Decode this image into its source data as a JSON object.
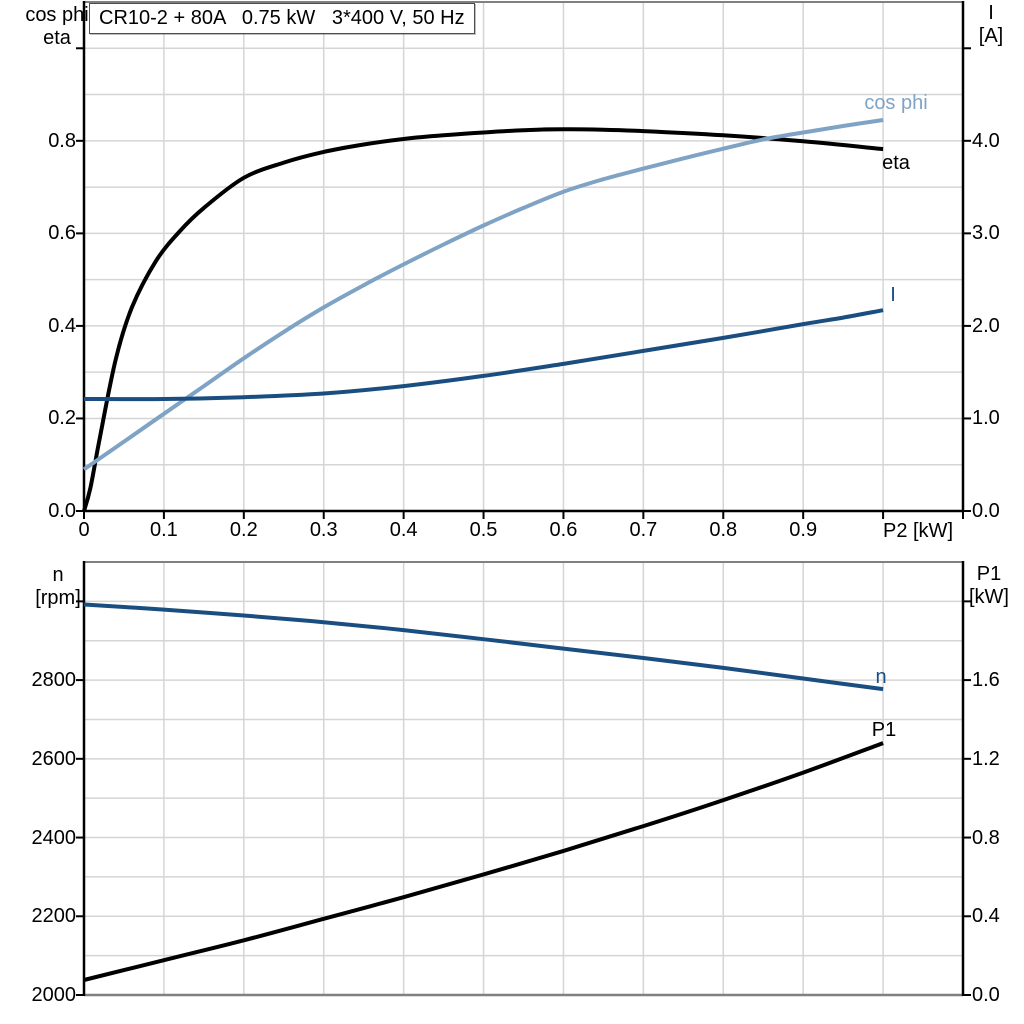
{
  "title_box": {
    "text": "CR10-2 + 80A   0.75 kW   3*400 V, 50 Hz"
  },
  "axis_corner_labels": {
    "top_left": [
      "cos phi",
      "eta"
    ],
    "top_right": [
      "I",
      "[A]"
    ],
    "bottom_left": [
      "n",
      "[rpm]"
    ],
    "bottom_right": [
      "P1",
      "[kW]"
    ]
  },
  "colors": {
    "black": "#000000",
    "light_blue": "#7fa3c4",
    "dark_blue": "#1a4e80",
    "grid": "#d5d5d5",
    "border_gray": "#808080"
  },
  "chart_data": [
    {
      "type": "line",
      "title": "CR10-2 + 80A   0.75 kW   3*400 V, 50 Hz",
      "x_axis": {
        "label": "P2 [kW]",
        "min": 0,
        "max": 1.1,
        "tick_step": 0.1,
        "tick_labels": [
          "0",
          "0.1",
          "0.2",
          "0.3",
          "0.4",
          "0.5",
          "0.6",
          "0.7",
          "0.8",
          "0.9",
          ""
        ]
      },
      "y_axis_left": {
        "label": "cos phi / eta",
        "min": 0,
        "max": 1.1,
        "grid_step": 0.1,
        "ticks": [
          0,
          0.2,
          0.4,
          0.6,
          0.8,
          1.0
        ],
        "tick_labels": [
          "0.0",
          "0.2",
          "0.4",
          "0.6",
          "0.8",
          ""
        ]
      },
      "y_axis_right": {
        "label": "I [A]",
        "min": 0,
        "max": 5.5,
        "grid_step": 0.5,
        "ticks": [
          0,
          1,
          2,
          3,
          4,
          5
        ],
        "tick_labels": [
          "0.0",
          "1.0",
          "2.0",
          "3.0",
          "4.0",
          ""
        ]
      },
      "grid": true,
      "legend_position": "inline-curve-labels",
      "series": [
        {
          "name": "eta",
          "axis": "left",
          "color": "#000000",
          "x": [
            0,
            0.008,
            0.02,
            0.04,
            0.06,
            0.09,
            0.12,
            0.15,
            0.2,
            0.25,
            0.3,
            0.35,
            0.4,
            0.45,
            0.5,
            0.55,
            0.6,
            0.65,
            0.7,
            0.8,
            0.9,
            1.0
          ],
          "y": [
            0,
            0.05,
            0.16,
            0.33,
            0.44,
            0.54,
            0.605,
            0.655,
            0.72,
            0.753,
            0.776,
            0.792,
            0.804,
            0.812,
            0.818,
            0.823,
            0.825,
            0.824,
            0.821,
            0.812,
            0.799,
            0.782
          ]
        },
        {
          "name": "cos phi",
          "axis": "left",
          "color": "#7fa3c4",
          "x": [
            0,
            0.05,
            0.1,
            0.15,
            0.2,
            0.25,
            0.3,
            0.35,
            0.4,
            0.45,
            0.5,
            0.55,
            0.6,
            0.65,
            0.7,
            0.75,
            0.8,
            0.85,
            0.9,
            0.95,
            1.0
          ],
          "y": [
            0.09,
            0.15,
            0.21,
            0.27,
            0.33,
            0.387,
            0.44,
            0.488,
            0.533,
            0.576,
            0.617,
            0.655,
            0.69,
            0.717,
            0.74,
            0.762,
            0.783,
            0.803,
            0.818,
            0.832,
            0.845
          ]
        },
        {
          "name": "I",
          "axis": "right",
          "color": "#1a4e80",
          "x": [
            0,
            0.1,
            0.2,
            0.3,
            0.4,
            0.5,
            0.6,
            0.7,
            0.8,
            0.9,
            0.95,
            1.0
          ],
          "y": [
            1.21,
            1.21,
            1.23,
            1.27,
            1.35,
            1.46,
            1.59,
            1.73,
            1.87,
            2.02,
            2.09,
            2.17
          ]
        }
      ]
    },
    {
      "type": "line",
      "x_axis": {
        "label": "",
        "min": 0,
        "max": 1.1,
        "tick_step": 0.1,
        "tick_labels": []
      },
      "y_axis_left": {
        "label": "n [rpm]",
        "min": 2000,
        "max": 3100,
        "grid_step": 100,
        "ticks": [
          2000,
          2200,
          2400,
          2600,
          2800,
          3000
        ],
        "tick_labels": [
          "2000",
          "2200",
          "2400",
          "2600",
          "2800",
          ""
        ]
      },
      "y_axis_right": {
        "label": "P1 [kW]",
        "min": 0,
        "max": 2.2,
        "grid_step": 0.2,
        "ticks": [
          0,
          0.4,
          0.8,
          1.2,
          1.6,
          2.0
        ],
        "tick_labels": [
          "0.0",
          "0.4",
          "0.8",
          "1.2",
          "1.6",
          ""
        ]
      },
      "grid": true,
      "series": [
        {
          "name": "n",
          "axis": "left",
          "color": "#1a4e80",
          "x": [
            0,
            0.1,
            0.2,
            0.3,
            0.4,
            0.5,
            0.6,
            0.7,
            0.8,
            0.9,
            1.0
          ],
          "y": [
            2992,
            2979,
            2964,
            2947,
            2927,
            2904,
            2880,
            2856,
            2831,
            2804,
            2777
          ]
        },
        {
          "name": "P1",
          "axis": "right",
          "color": "#000000",
          "x": [
            0,
            0.1,
            0.2,
            0.3,
            0.4,
            0.5,
            0.6,
            0.7,
            0.8,
            0.9,
            1.0
          ],
          "y": [
            0.076,
            0.177,
            0.278,
            0.387,
            0.497,
            0.613,
            0.732,
            0.858,
            0.99,
            1.13,
            1.28
          ]
        }
      ]
    }
  ]
}
